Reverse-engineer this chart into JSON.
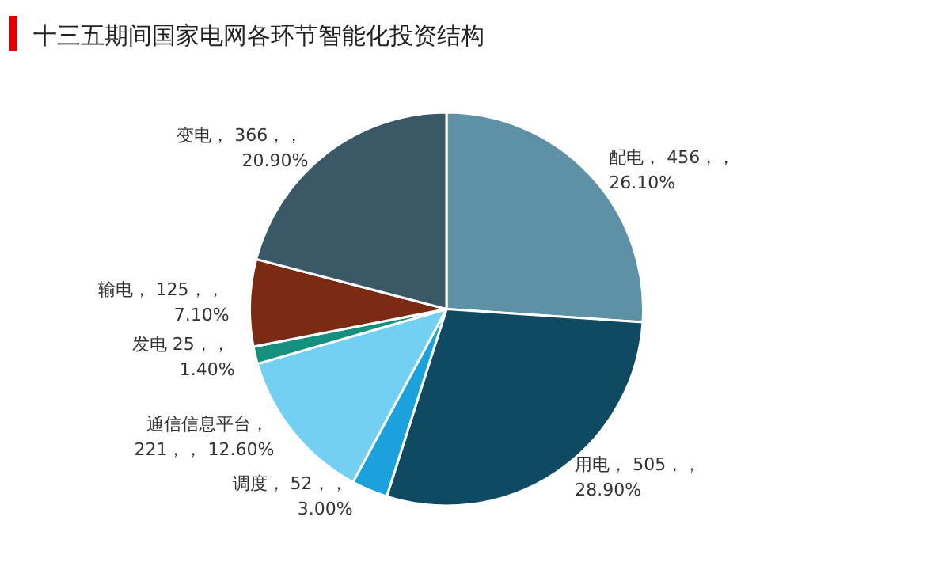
{
  "chart_data": {
    "type": "pie",
    "title": "十三五期间国家电网各环节智能化投资结构",
    "categories": [
      "配电",
      "用电",
      "调度",
      "通信信息平台",
      "发电",
      "输电",
      "变电"
    ],
    "values": [
      456,
      505,
      52,
      221,
      25,
      125,
      366
    ],
    "colors": [
      "#5e90a6",
      "#0f4a62",
      "#1ba2dc",
      "#73d0f2",
      "#15907e",
      "#7b2a14",
      "#3a5866"
    ],
    "value_labels": [
      "， 456，， 26.10%",
      "， 505，， 28.90%",
      "， 52，， 3.00%",
      "， 221，， 12.60%",
      " 25，， 1.40%",
      "， 125，， 7.10%",
      "， 366，， 20.90%"
    ],
    "legend": false
  }
}
